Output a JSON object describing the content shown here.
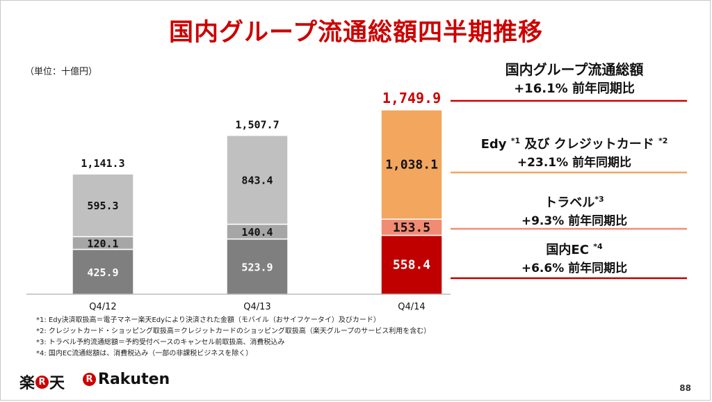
{
  "title": "国内グループ流通総額四半期推移",
  "unit": "（単位：十億円）",
  "chart_data": {
    "type": "bar",
    "stacked": true,
    "categories": [
      "Q4/12",
      "Q4/13",
      "Q4/14"
    ],
    "totals": [
      "1,141.3",
      "1,507.7",
      "1,749.9"
    ],
    "series": [
      {
        "segment": "domestic_ec",
        "values": [
          425.9,
          523.9,
          558.4
        ],
        "labels": [
          "425.9",
          "523.9",
          "558.4"
        ]
      },
      {
        "segment": "travel",
        "values": [
          120.1,
          140.4,
          153.5
        ],
        "labels": [
          "120.1",
          "140.4",
          "153.5"
        ]
      },
      {
        "segment": "edy_credit",
        "values": [
          595.3,
          843.4,
          1038.1
        ],
        "labels": [
          "595.3",
          "843.4",
          "1,038.1"
        ]
      }
    ],
    "colors": {
      "past_ec": "#7f7f7f",
      "past_travel": "#a6a6a6",
      "past_edy": "#c0c0c0",
      "current_ec": "#c00000",
      "current_travel": "#f28b74",
      "current_edy": "#f2a65e",
      "highlight_total": "#cc0000"
    },
    "ylim": [
      0,
      1900
    ]
  },
  "legend": {
    "total": {
      "name": "国内グループ流通総額",
      "growth": "+16.1% 前年同期比"
    },
    "edy": {
      "name": "Edy",
      "sup1": "*1",
      "name2": " 及び クレジットカード ",
      "sup2": "*2",
      "growth": "+23.1% 前年同期比"
    },
    "travel": {
      "name": "トラベル",
      "sup": "*3",
      "growth": "+9.3% 前年同期比"
    },
    "ec": {
      "name": "国内EC ",
      "sup": "*4",
      "growth": "+6.6% 前年同期比"
    }
  },
  "footnotes": [
    "*1: Edy決済取扱高＝電子マネー楽天Edyにより決済された金額（モバイル（おサイフケータイ）及びカード）",
    "*2: クレジットカード・ショッピング取扱高＝クレジットカードのショッピング取扱高（楽天グループのサービス利用を含む）",
    "*3: トラベル予約流通総額＝予約受付ベースのキャンセル前取扱高、消費税込み",
    "*4: 国内EC流通総額は、消費税込み（一部の非課税ビジネスを除く）"
  ],
  "logos": {
    "jp_left": "楽",
    "jp_circle": "R",
    "jp_right": "天",
    "en_circle": "R",
    "en_text": "Rakuten"
  },
  "page_number": "88"
}
